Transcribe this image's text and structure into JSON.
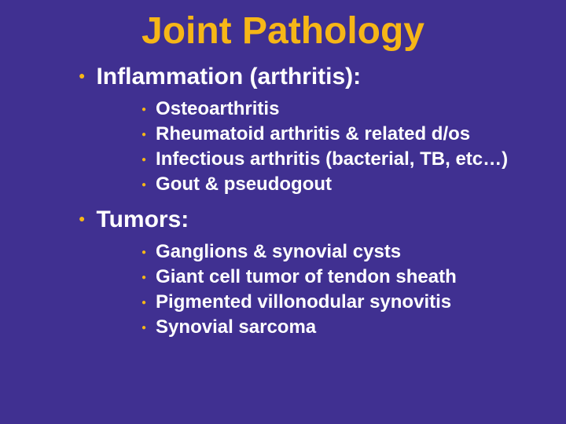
{
  "colors": {
    "background": "#403091",
    "title": "#f6b617",
    "bullet": "#f6b617",
    "text": "#ffffff"
  },
  "typography": {
    "title_fontsize": 48,
    "section_fontsize": 30,
    "subitem_fontsize": 24,
    "family": "Arial"
  },
  "title": "Joint Pathology",
  "sections": [
    {
      "label": "Inflammation (arthritis):",
      "items": [
        "Osteoarthritis",
        "Rheumatoid arthritis & related d/os",
        "Infectious arthritis (bacterial, TB, etc…)",
        "Gout & pseudogout"
      ]
    },
    {
      "label": "Tumors:",
      "items": [
        "Ganglions & synovial cysts",
        "Giant cell tumor of tendon sheath",
        "Pigmented villonodular synovitis",
        "Synovial sarcoma"
      ]
    }
  ]
}
